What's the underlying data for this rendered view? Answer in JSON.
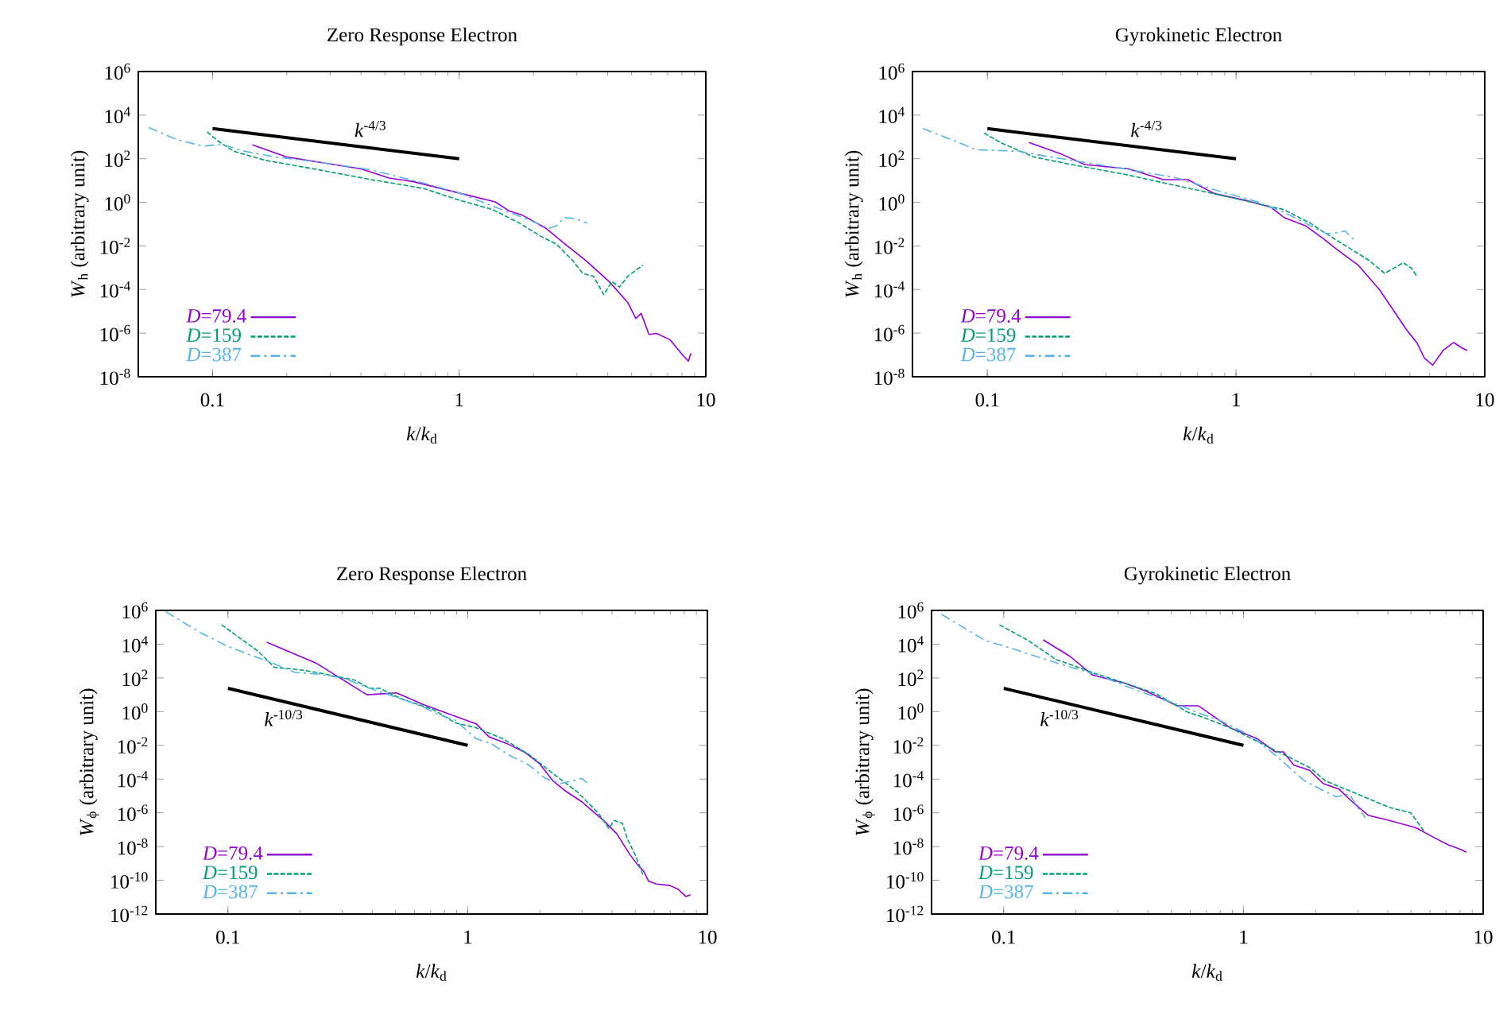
{
  "chart_data": [
    {
      "type": "line",
      "title": "Zero Response Electron",
      "xlabel": "*k*/*k*$_{d}$",
      "ylabel": "*W*$_{h}$ (arbitrary unit)",
      "log": "xy",
      "legend": "bottom left",
      "xlim": [
        0.05,
        10
      ],
      "xticks": [
        0.1,
        1,
        10
      ],
      "ylim": [
        1e-08,
        1000000.0
      ],
      "yticks": [
        {
          "value": 1e-08,
          "label": "10$^{-8}$"
        },
        {
          "value": 1e-06,
          "label": "10$^{-6}$"
        },
        {
          "value": 0.0001,
          "label": "10$^{-4}$"
        },
        {
          "value": 0.01,
          "label": "10$^{-2}$"
        },
        {
          "value": 1,
          "label": "10$^{0}$"
        },
        {
          "value": 100.0,
          "label": "10$^{2}$"
        },
        {
          "value": 10000.0,
          "label": "10$^{4}$"
        },
        {
          "value": 1000000.0,
          "label": "10$^{6}$"
        }
      ],
      "annotations": [
        "*k*$^{-4/3}$"
      ],
      "series": [
        {
          "name": "*D*=79.4",
          "color": "#9400d3",
          "line_style": "solid",
          "x": [
            0.145,
            0.2,
            0.27,
            0.4,
            0.52,
            0.65,
            0.97,
            1.4,
            1.59,
            1.8,
            2.25,
            2.67,
            3.25,
            4.06,
            4.83,
            5.2,
            5.47,
            5.88,
            6.32,
            7.17,
            8.11,
            8.5,
            8.7
          ],
          "values": [
            430,
            120,
            70,
            34,
            13,
            9,
            2.9,
            1.05,
            0.41,
            0.26,
            0.064,
            0.013,
            0.0022,
            0.00023,
            2.5e-05,
            4.7e-06,
            8e-06,
            8.7e-07,
            9.7e-07,
            4.9e-07,
            9e-08,
            5.2e-08,
            1.2e-07
          ]
        },
        {
          "name": "*D*=159",
          "color": "#009e73",
          "line_style": "dashed",
          "x": [
            0.095,
            0.105,
            0.122,
            0.164,
            0.27,
            0.44,
            0.72,
            0.97,
            1.37,
            1.76,
            2.14,
            2.48,
            2.88,
            3.17,
            3.5,
            3.86,
            4.16,
            4.47,
            4.83,
            5.55
          ],
          "values": [
            1700,
            660,
            220,
            84,
            31,
            11,
            4.3,
            1.4,
            0.46,
            0.11,
            0.028,
            0.012,
            0.0022,
            0.00055,
            0.00041,
            5.8e-05,
            0.00023,
            0.00013,
            0.00041,
            0.0013
          ]
        },
        {
          "name": "*D*=387",
          "color": "#56b4e9",
          "line_style": "dashdot",
          "x": [
            0.055,
            0.071,
            0.091,
            0.11,
            0.135,
            0.18,
            0.27,
            0.44,
            0.54,
            0.72,
            1.02,
            1.31,
            1.94,
            2.3,
            2.48,
            2.67,
            2.95,
            3.3
          ],
          "values": [
            2700,
            790,
            380,
            450,
            220,
            120,
            70,
            31,
            17,
            7.5,
            2.5,
            0.8,
            0.15,
            0.064,
            0.085,
            0.2,
            0.18,
            0.11
          ]
        },
        {
          "color": "#000000",
          "line_style": "solid",
          "x": [
            0.1,
            1
          ],
          "values": [
            2400,
            100
          ]
        }
      ]
    },
    {
      "type": "line",
      "title": "Gyrokinetic Electron",
      "xlabel": "*k*/*k*$_{d}$",
      "ylabel": "*W*$_{h}$ (arbitrary unit)",
      "log": "xy",
      "legend": "bottom left",
      "xlim": [
        0.05,
        10
      ],
      "xticks": [
        0.1,
        1,
        10
      ],
      "ylim": [
        1e-08,
        1000000.0
      ],
      "yticks": [
        {
          "value": 1e-08,
          "label": "10$^{-8}$"
        },
        {
          "value": 1e-06,
          "label": "10$^{-6}$"
        },
        {
          "value": 0.0001,
          "label": "10$^{-4}$"
        },
        {
          "value": 0.01,
          "label": "10$^{-2}$"
        },
        {
          "value": 1,
          "label": "10$^{0}$"
        },
        {
          "value": 100.0,
          "label": "10$^{2}$"
        },
        {
          "value": 10000.0,
          "label": "10$^{4}$"
        },
        {
          "value": 1000000.0,
          "label": "10$^{6}$"
        }
      ],
      "annotations": [
        "*k*$^{-4/3}$"
      ],
      "series": [
        {
          "name": "*D*=79.4",
          "color": "#9400d3",
          "line_style": "solid",
          "x": [
            0.147,
            0.197,
            0.246,
            0.37,
            0.51,
            0.64,
            0.82,
            1.1,
            1.38,
            1.56,
            1.9,
            2.25,
            2.55,
            3.1,
            3.77,
            4.16,
            4.83,
            5.33,
            5.73,
            6.18,
            6.8,
            7.5,
            8.1,
            8.5
          ],
          "values": [
            560,
            170,
            54,
            34,
            11,
            11,
            2.5,
            1.2,
            0.6,
            0.2,
            0.085,
            0.021,
            0.0068,
            0.0013,
            0.0001,
            1.9e-05,
            1.5e-06,
            3.7e-07,
            6.9e-08,
            3.4e-08,
            1.6e-07,
            3.7e-07,
            2.1e-07,
            1.6e-07
          ]
        },
        {
          "name": "*D*=159",
          "color": "#009e73",
          "line_style": "dashed",
          "x": [
            0.097,
            0.115,
            0.154,
            0.218,
            0.36,
            0.58,
            0.95,
            1.56,
            1.99,
            2.31,
            2.81,
            3.42,
            3.96,
            4.71,
            5.07,
            5.33
          ],
          "values": [
            1500,
            500,
            120,
            54,
            19,
            5.7,
            1.7,
            0.46,
            0.11,
            0.036,
            0.0089,
            0.0022,
            0.00055,
            0.0017,
            0.00095,
            0.00041
          ]
        },
        {
          "name": "*D*=387",
          "color": "#56b4e9",
          "line_style": "dashdot",
          "x": [
            0.055,
            0.074,
            0.09,
            0.133,
            0.16,
            0.24,
            0.36,
            0.58,
            0.86,
            1.22,
            1.56,
            1.99,
            2.31,
            2.55,
            2.74,
            3.03
          ],
          "values": [
            2400,
            660,
            260,
            220,
            150,
            71,
            34,
            13,
            3.2,
            1.05,
            0.35,
            0.085,
            0.036,
            0.041,
            0.049,
            0.016
          ]
        },
        {
          "color": "#000000",
          "line_style": "solid",
          "x": [
            0.1,
            1
          ],
          "values": [
            2400,
            100
          ]
        }
      ]
    },
    {
      "type": "line",
      "title": "Zero Response Electron",
      "xlabel": "*k*/*k*$_{d}$",
      "ylabel": "*W*$_{ϕ}$ (arbitrary unit)",
      "log": "xy",
      "legend": "bottom left",
      "xlim": [
        0.05,
        10
      ],
      "xticks": [
        0.1,
        1,
        10
      ],
      "ylim": [
        1e-12,
        1000000.0
      ],
      "yticks": [
        {
          "value": 1e-12,
          "label": "10$^{-12}$"
        },
        {
          "value": 1e-10,
          "label": "10$^{-10}$"
        },
        {
          "value": 1e-08,
          "label": "10$^{-8}$"
        },
        {
          "value": 1e-06,
          "label": "10$^{-6}$"
        },
        {
          "value": 0.0001,
          "label": "10$^{-4}$"
        },
        {
          "value": 0.01,
          "label": "10$^{-2}$"
        },
        {
          "value": 1,
          "label": "10$^{0}$"
        },
        {
          "value": 100.0,
          "label": "10$^{2}$"
        },
        {
          "value": 10000.0,
          "label": "10$^{4}$"
        },
        {
          "value": 1000000.0,
          "label": "10$^{6}$"
        }
      ],
      "annotations": [
        "*k*$^{-10/3}$"
      ],
      "series": [
        {
          "name": "*D*=79.4",
          "color": "#9400d3",
          "line_style": "solid",
          "x": [
            0.145,
            0.235,
            0.38,
            0.505,
            0.65,
            1.085,
            1.23,
            1.47,
            1.72,
            2.0,
            2.27,
            2.58,
            3.0,
            3.69,
            4.19,
            4.76,
            5.14,
            5.41,
            5.69,
            6.14,
            6.98,
            7.54,
            8.13,
            8.5
          ],
          "values": [
            13000.0,
            710,
            10,
            13,
            2.7,
            0.19,
            0.031,
            0.012,
            0.0041,
            0.00079,
            7.8e-05,
            1.8e-05,
            4.4e-06,
            3.5e-07,
            5.7e-08,
            3.2e-09,
            7.6e-10,
            3.7e-10,
            8.7e-11,
            6e-11,
            4.9e-11,
            3e-11,
            1.1e-11,
            1.4e-11
          ]
        },
        {
          "name": "*D*=159",
          "color": "#009e73",
          "line_style": "dashed",
          "x": [
            0.094,
            0.134,
            0.156,
            0.2,
            0.235,
            0.34,
            0.39,
            0.43,
            0.53,
            0.72,
            0.885,
            1.085,
            1.4,
            1.8,
            2.33,
            2.86,
            3.5,
            3.88,
            4.09,
            4.42,
            4.64,
            5.0,
            5.41
          ],
          "values": [
            140000.0,
            3700,
            430,
            300,
            210,
            71,
            24,
            24,
            5.7,
            1.3,
            0.22,
            0.11,
            0.025,
            0.0029,
            0.00016,
            1.8e-05,
            1e-06,
            1.2e-07,
            3.5e-07,
            2.4e-07,
            2.8e-08,
            3.2e-09,
            1.8e-10
          ]
        },
        {
          "name": "*D*=387",
          "color": "#56b4e9",
          "line_style": "dashdot",
          "x": [
            0.055,
            0.077,
            0.099,
            0.121,
            0.149,
            0.19,
            0.235,
            0.3,
            0.39,
            0.53,
            0.65,
            0.76,
            0.885,
            1.085,
            1.26,
            1.47,
            1.8,
            2.11,
            2.45,
            2.72,
            3.0,
            3.16
          ],
          "values": [
            840000.0,
            47000.0,
            7800,
            2600,
            890,
            210,
            170,
            100,
            24,
            5.7,
            1.9,
            0.65,
            0.32,
            0.025,
            0.012,
            0.0029,
            0.00068,
            0.00011,
            5.5e-05,
            7.8e-05,
            0.00011,
            5.5e-05
          ]
        },
        {
          "color": "#000000",
          "line_style": "solid",
          "x": [
            0.1,
            1
          ],
          "values": [
            24,
            0.01
          ]
        }
      ]
    },
    {
      "type": "line",
      "title": "Gyrokinetic Electron",
      "xlabel": "*k*/*k*$_{d}$",
      "ylabel": "*W*$_{ϕ}$ (arbitrary unit)",
      "log": "xy",
      "legend": "bottom left",
      "xlim": [
        0.05,
        10
      ],
      "xticks": [
        0.1,
        1,
        10
      ],
      "ylim": [
        1e-12,
        1000000.0
      ],
      "yticks": [
        {
          "value": 1e-12,
          "label": "10$^{-12}$"
        },
        {
          "value": 1e-10,
          "label": "10$^{-10}$"
        },
        {
          "value": 1e-08,
          "label": "10$^{-8}$"
        },
        {
          "value": 1e-06,
          "label": "10$^{-6}$"
        },
        {
          "value": 0.0001,
          "label": "10$^{-4}$"
        },
        {
          "value": 0.01,
          "label": "10$^{-2}$"
        },
        {
          "value": 1,
          "label": "10$^{0}$"
        },
        {
          "value": 100.0,
          "label": "10$^{2}$"
        },
        {
          "value": 10000.0,
          "label": "10$^{4}$"
        },
        {
          "value": 1000000.0,
          "label": "10$^{6}$"
        }
      ],
      "annotations": [
        "*k*$^{-10/3}$"
      ],
      "series": [
        {
          "name": "*D*=79.4",
          "color": "#9400d3",
          "line_style": "solid",
          "x": [
            0.146,
            0.19,
            0.234,
            0.32,
            0.39,
            0.53,
            0.65,
            0.88,
            1.14,
            1.36,
            1.47,
            1.62,
            1.89,
            2.15,
            2.5,
            2.85,
            3.31,
            4.06,
            5.25,
            6.11,
            7.13,
            8.1,
            8.5
          ],
          "values": [
            18000.0,
            1800,
            150,
            49,
            17,
            2.2,
            2.2,
            0.11,
            0.025,
            0.0041,
            0.0041,
            0.00068,
            0.00033,
            5.5e-05,
            2.6e-05,
            4.4e-06,
            7.2e-07,
            3.5e-07,
            1.3e-07,
            4e-08,
            1.3e-08,
            6.6e-09,
            4.6e-09
          ]
        },
        {
          "name": "*D*=159",
          "color": "#009e73",
          "line_style": "dashed",
          "x": [
            0.096,
            0.127,
            0.164,
            0.234,
            0.32,
            0.43,
            0.585,
            0.68,
            0.88,
            1.2,
            1.47,
            1.89,
            2.2,
            2.99,
            4.06,
            4.99,
            5.66
          ],
          "values": [
            140000.0,
            16000.0,
            1300,
            210,
            49,
            12,
            0.93,
            0.46,
            0.11,
            0.012,
            0.0029,
            0.00048,
            7.8e-05,
            1.3e-05,
            2.1e-06,
            1e-06,
            8.3e-08
          ]
        },
        {
          "name": "*D*=387",
          "color": "#56b4e9",
          "line_style": "dashdot",
          "x": [
            0.055,
            0.084,
            0.109,
            0.148,
            0.19,
            0.246,
            0.32,
            0.39,
            0.53,
            0.68,
            0.79,
            1.08,
            1.39,
            1.8,
            2.2,
            2.44,
            2.77,
            2.99,
            3.23
          ],
          "values": [
            590000.0,
            16000.0,
            5400,
            1300,
            430,
            150,
            35,
            12,
            2.7,
            0.65,
            0.32,
            0.036,
            0.002,
            7.8e-05,
            1.8e-05,
            8.9e-06,
            1.3e-05,
            2.1e-06,
            5e-07
          ]
        },
        {
          "color": "#000000",
          "line_style": "solid",
          "x": [
            0.1,
            1
          ],
          "values": [
            24,
            0.01
          ]
        }
      ]
    }
  ]
}
